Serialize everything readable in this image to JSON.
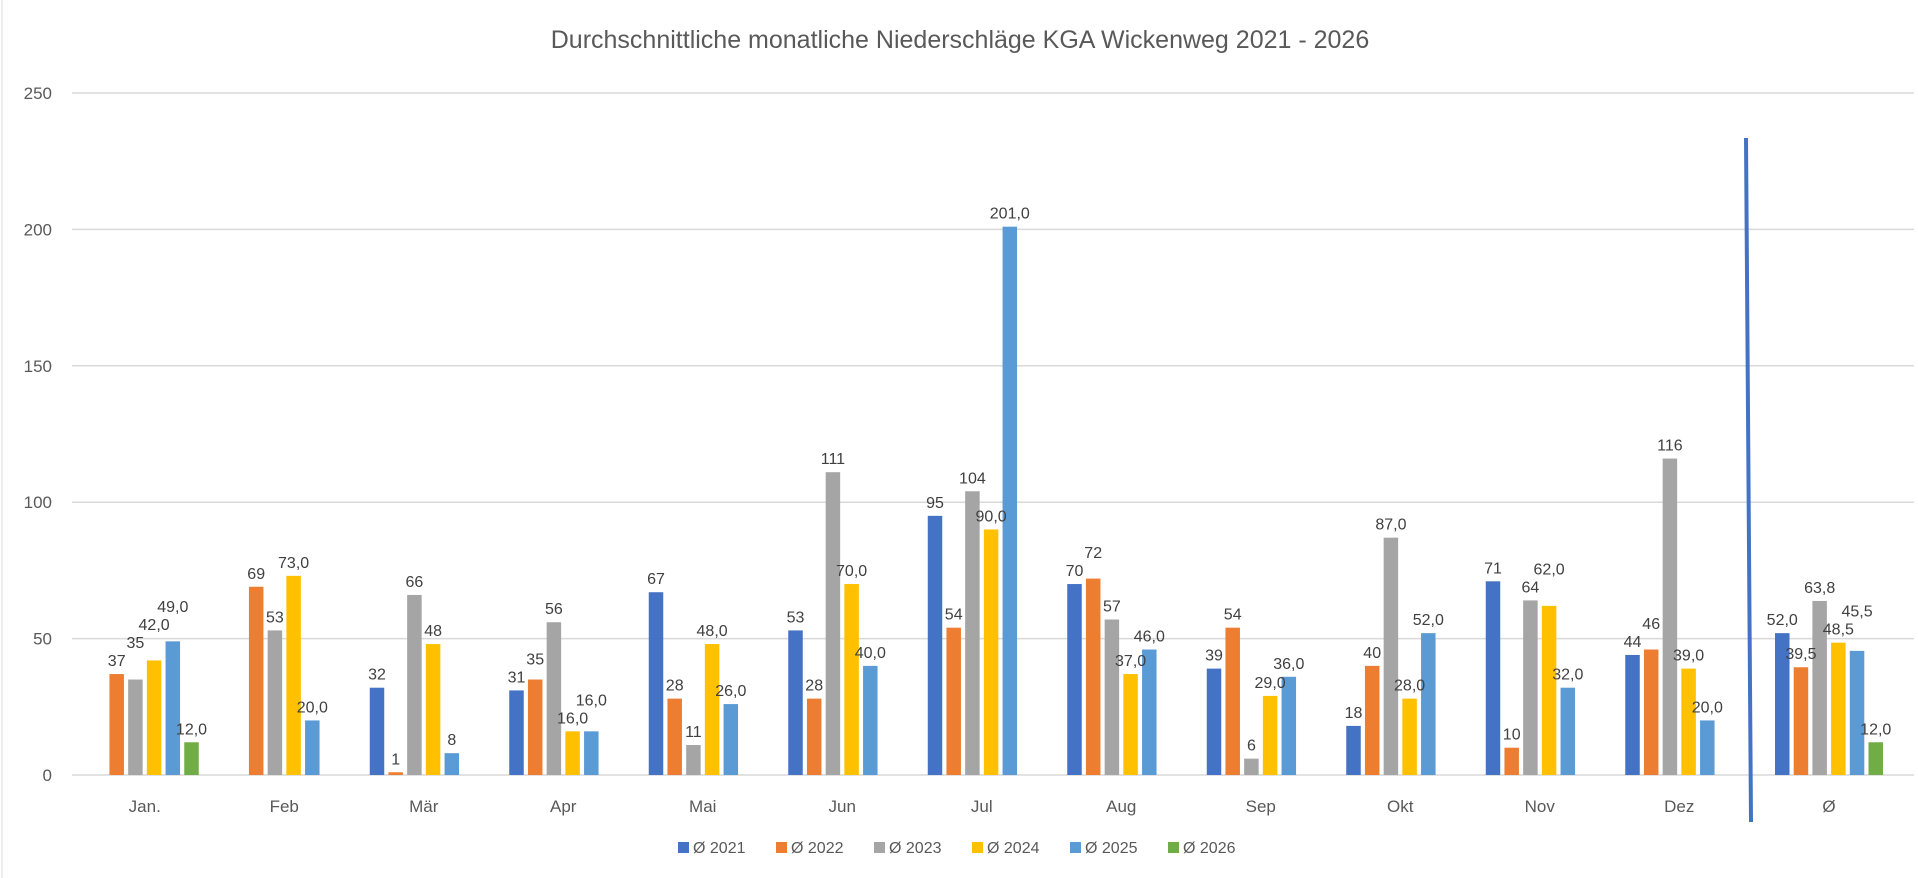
{
  "chart_data": {
    "type": "bar",
    "title": "Durchschnittliche monatliche Niederschläge KGA Wickenweg 2021 - 2026",
    "xlabel": "",
    "ylabel": "",
    "ylim": [
      0,
      250
    ],
    "yticks": [
      "0",
      "50",
      "100",
      "150",
      "200",
      "250"
    ],
    "grid": true,
    "legend_position": "bottom",
    "categories": [
      "Jan.",
      "Feb",
      "Mär",
      "Apr",
      "Mai",
      "Jun",
      "Jul",
      "Aug",
      "Sep",
      "Okt",
      "Nov",
      "Dez",
      "Ø"
    ],
    "series": [
      {
        "name": "Ø 2021",
        "color": "#4472C4",
        "values": [
          null,
          null,
          32,
          31,
          67,
          53,
          95,
          70,
          39,
          18,
          71,
          44,
          52.0
        ],
        "labels": [
          null,
          null,
          "32",
          "31",
          "67",
          "53",
          "95",
          "70",
          "39",
          "18",
          "71",
          "44",
          "52,0"
        ]
      },
      {
        "name": "Ø 2022",
        "color": "#ED7D31",
        "values": [
          37,
          69,
          1,
          35,
          28,
          28,
          54,
          72,
          54,
          40,
          10,
          46,
          39.5
        ],
        "labels": [
          "37",
          "69",
          "1",
          "35",
          "28",
          "28",
          "54",
          "72",
          "54",
          "40",
          "10",
          "46",
          "39,5"
        ]
      },
      {
        "name": "Ø 2023",
        "color": "#A5A5A5",
        "values": [
          35,
          53,
          66,
          56,
          11,
          111,
          104,
          57,
          6,
          87.0,
          64,
          116,
          63.8
        ],
        "labels": [
          "35",
          "53",
          "66",
          "56",
          "11",
          "111",
          "104",
          "57",
          "6",
          "87,0",
          "64",
          "116",
          "63,8"
        ]
      },
      {
        "name": "Ø 2024",
        "color": "#FFC000",
        "values": [
          42.0,
          73.0,
          48,
          16.0,
          48.0,
          70.0,
          90.0,
          37.0,
          29.0,
          28.0,
          62.0,
          39.0,
          48.5
        ],
        "labels": [
          "42,0",
          "73,0",
          "48",
          "16,0",
          "48,0",
          "70,0",
          "90,0",
          "37,0",
          "29,0",
          "28,0",
          "62,0",
          "39,0",
          "48,5"
        ]
      },
      {
        "name": "Ø 2025",
        "color": "#5B9BD5",
        "values": [
          49.0,
          20.0,
          8,
          16.0,
          26.0,
          40.0,
          201.0,
          46.0,
          36.0,
          52.0,
          32.0,
          20.0,
          45.5
        ],
        "labels": [
          "49,0",
          "20,0",
          "8",
          "16,0",
          "26,0",
          "40,0",
          "201,0",
          "46,0",
          "36,0",
          "52,0",
          "32,0",
          "20,0",
          "45,5"
        ]
      },
      {
        "name": "Ø 2026",
        "color": "#70AD47",
        "values": [
          12.0,
          null,
          null,
          null,
          null,
          null,
          null,
          null,
          null,
          null,
          null,
          null,
          12.0
        ],
        "labels": [
          "12,0",
          null,
          null,
          null,
          null,
          null,
          null,
          null,
          null,
          null,
          null,
          null,
          "12,0"
        ]
      }
    ],
    "annotation_line_color": "#4472C4"
  }
}
